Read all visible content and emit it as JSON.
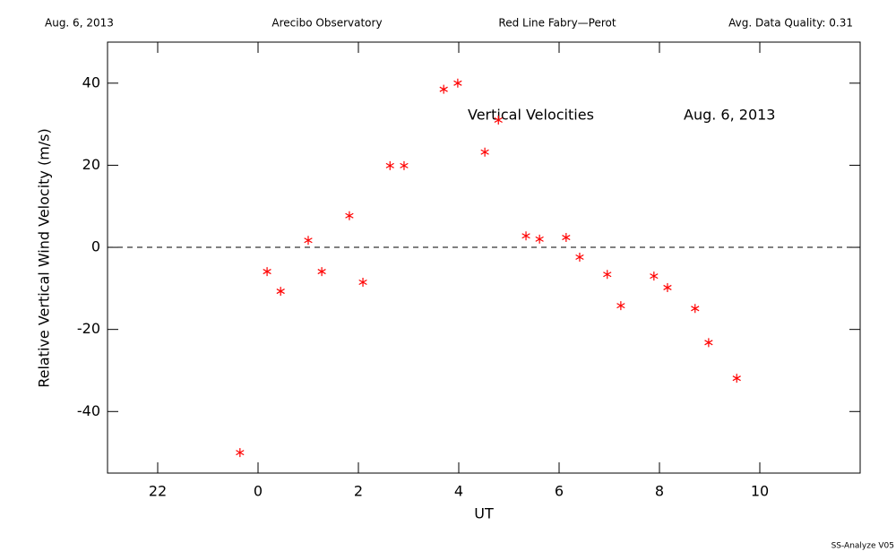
{
  "chart_data": {
    "type": "scatter",
    "header": [
      "Aug. 6, 2013",
      "Arecibo Observatory",
      "Red Line Fabry—Perot",
      "Avg. Data Quality: 0.31"
    ],
    "annotations": [
      "Vertical Velocities",
      "Aug. 6, 2013"
    ],
    "footer": "SS-Analyze V05",
    "x_label": "UT",
    "y_label": "Relative Vertical Wind Velocity (m/s)",
    "x": [
      -0.36,
      0.18,
      0.45,
      1.0,
      1.27,
      1.82,
      2.09,
      2.63,
      2.91,
      3.7,
      3.98,
      4.52,
      4.79,
      5.34,
      5.61,
      6.14,
      6.41,
      6.96,
      7.23,
      7.89,
      8.16,
      8.71,
      8.98,
      9.54
    ],
    "values": [
      -50,
      -5.9,
      -10.7,
      1.7,
      -5.9,
      7.7,
      -8.5,
      19.9,
      19.9,
      38.5,
      40,
      23.2,
      31.0,
      2.8,
      2.0,
      2.4,
      -2.4,
      -6.6,
      -14.2,
      -7.0,
      -9.8,
      -14.9,
      -23.2,
      -31.9
    ],
    "color": "#ff0000",
    "xlim": [
      -3,
      12
    ],
    "xticks": [
      {
        "value": -2,
        "label": "22"
      },
      0,
      2,
      4,
      6,
      8,
      10
    ],
    "ylim": [
      -55,
      50
    ],
    "yticks": [
      -40,
      -20,
      0,
      20,
      40
    ],
    "reference_line": 0
  }
}
